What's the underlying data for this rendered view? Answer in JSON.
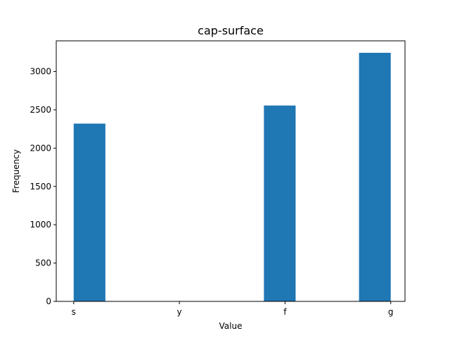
{
  "chart_data": {
    "type": "bar",
    "title": "cap-surface",
    "xlabel": "Value",
    "ylabel": "Frequency",
    "ylim": [
      0,
      3400
    ],
    "yticks": [
      0,
      500,
      1000,
      1500,
      2000,
      2500,
      3000
    ],
    "xticks": [
      "s",
      "y",
      "f",
      "g"
    ],
    "bins": [
      {
        "x": 0.0,
        "value": 2320
      },
      {
        "x": 0.3,
        "value": 0
      },
      {
        "x": 0.6,
        "value": 0
      },
      {
        "x": 0.9,
        "value": 0
      },
      {
        "x": 1.2,
        "value": 0
      },
      {
        "x": 1.5,
        "value": 0
      },
      {
        "x": 1.8,
        "value": 2556
      },
      {
        "x": 2.1,
        "value": 0
      },
      {
        "x": 2.4,
        "value": 0
      },
      {
        "x": 2.7,
        "value": 3244
      },
      {
        "x": 3.0,
        "value": 0
      }
    ],
    "bar_color": "#1f77b4"
  }
}
